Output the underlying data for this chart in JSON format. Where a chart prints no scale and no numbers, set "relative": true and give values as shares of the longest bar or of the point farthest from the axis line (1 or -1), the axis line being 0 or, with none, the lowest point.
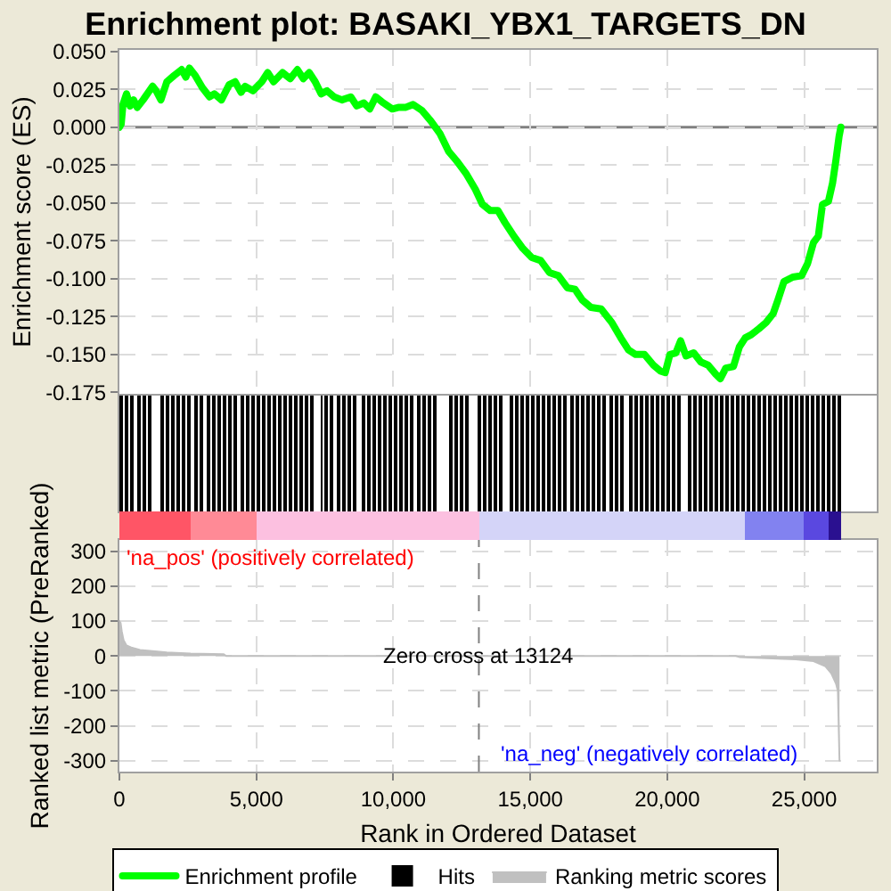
{
  "chart_data": [
    {
      "type": "line",
      "title": "Enrichment plot: BASAKI_YBX1_TARGETS_DN",
      "ylabel": "Enrichment score (ES)",
      "x": [
        0,
        65,
        130,
        260,
        390,
        520,
        650,
        866,
        1213,
        1343,
        1516,
        1733,
        1993,
        2274,
        2426,
        2556,
        2773,
        3032,
        3292,
        3466,
        3726,
        4007,
        4224,
        4440,
        4592,
        4873,
        5198,
        5415,
        5631,
        5956,
        6238,
        6498,
        6714,
        6931,
        7148,
        7364,
        7581,
        7841,
        8123,
        8448,
        8664,
        8924,
        9141,
        9358,
        9639,
        9964,
        10180,
        10440,
        10722,
        11047,
        11372,
        11696,
        12021,
        12346,
        12671,
        12996,
        13256,
        13537,
        13819,
        14079,
        14404,
        14729,
        15054,
        15379,
        15704,
        16028,
        16353,
        16635,
        16895,
        17220,
        17588,
        17978,
        18303,
        18584,
        18844,
        19169,
        19494,
        19754,
        19927,
        20100,
        20317,
        20490,
        20685,
        20967,
        21227,
        21487,
        21769,
        21942,
        22137,
        22418,
        22635,
        22851,
        23068,
        23350,
        23610,
        23870,
        24043,
        24260,
        24585,
        24910,
        25126,
        25343,
        25516,
        25668,
        25885,
        26036,
        26166,
        26275,
        26340
      ],
      "series": [
        {
          "name": "Enrichment profile",
          "color": "#00ff00",
          "values": [
            0,
            0.002,
            0.015,
            0.022,
            0.014,
            0.018,
            0.013,
            0.018,
            0.027,
            0.024,
            0.018,
            0.03,
            0.034,
            0.038,
            0.033,
            0.039,
            0.034,
            0.026,
            0.02,
            0.022,
            0.018,
            0.028,
            0.03,
            0.023,
            0.027,
            0.024,
            0.03,
            0.036,
            0.03,
            0.036,
            0.032,
            0.038,
            0.032,
            0.036,
            0.03,
            0.022,
            0.024,
            0.02,
            0.018,
            0.02,
            0.014,
            0.016,
            0.012,
            0.02,
            0.016,
            0.012,
            0.013,
            0.013,
            0.015,
            0.011,
            0.004,
            -0.004,
            -0.016,
            -0.023,
            -0.031,
            -0.041,
            -0.051,
            -0.055,
            -0.055,
            -0.063,
            -0.072,
            -0.08,
            -0.086,
            -0.088,
            -0.096,
            -0.098,
            -0.106,
            -0.107,
            -0.114,
            -0.119,
            -0.12,
            -0.129,
            -0.139,
            -0.147,
            -0.15,
            -0.15,
            -0.157,
            -0.161,
            -0.162,
            -0.15,
            -0.149,
            -0.141,
            -0.151,
            -0.149,
            -0.155,
            -0.157,
            -0.163,
            -0.166,
            -0.159,
            -0.158,
            -0.145,
            -0.139,
            -0.137,
            -0.133,
            -0.129,
            -0.123,
            -0.114,
            -0.102,
            -0.099,
            -0.098,
            -0.09,
            -0.076,
            -0.072,
            -0.051,
            -0.049,
            -0.037,
            -0.021,
            -0.006,
            0
          ]
        }
      ],
      "xlim": [
        0,
        27650
      ],
      "xticks": [
        0,
        5000,
        10000,
        15000,
        20000,
        25000
      ],
      "ylim": [
        -0.176,
        0.051
      ],
      "yticks": [
        {
          "value": 0.05,
          "label": "0.050"
        },
        {
          "value": 0.025,
          "label": "0.025"
        },
        {
          "value": 0,
          "label": "0.000"
        },
        {
          "value": -0.025,
          "label": "-0.025"
        },
        {
          "value": -0.05,
          "label": "-0.050"
        },
        {
          "value": -0.075,
          "label": "-0.075"
        },
        {
          "value": -0.1,
          "label": "-0.100"
        },
        {
          "value": -0.125,
          "label": "-0.125"
        },
        {
          "value": -0.15,
          "label": "-0.150"
        },
        {
          "value": -0.175,
          "label": "-0.175"
        }
      ],
      "grid": true,
      "ref_lines": [
        {
          "axis": "y",
          "value": 0,
          "color": "#808080"
        }
      ],
      "legend": "bottom",
      "tick_labels": "y"
    },
    {
      "type": "bar",
      "relative": true,
      "tick_labels": false,
      "legend": "bottom",
      "xlim": [
        0,
        27650
      ],
      "x": [
        40,
        234,
        429,
        689,
        884,
        1092,
        1560,
        1755,
        1950,
        2178,
        2373,
        2568,
        2769,
        2977,
        3230,
        3430,
        3627,
        3822,
        4017,
        4212,
        4459,
        4667,
        4862,
        5057,
        5252,
        5447,
        5642,
        5837,
        6032,
        6227,
        6422,
        6617,
        6812,
        7007,
        7384,
        7579,
        7774,
        8015,
        8210,
        8405,
        8600,
        8892,
        9087,
        9282,
        9477,
        9672,
        9867,
        10062,
        10257,
        10452,
        10660,
        10920,
        11135,
        11330,
        11525,
        12130,
        12325,
        12520,
        12715,
        13150,
        13345,
        13559,
        13754,
        13949,
        14300,
        14495,
        14690,
        14885,
        15080,
        15275,
        15470,
        15678,
        15880,
        16075,
        16270,
        16549,
        16744,
        16939,
        17134,
        17329,
        17524,
        17719,
        17940,
        18135,
        18330,
        18694,
        18889,
        19084,
        19279,
        19474,
        19669,
        19864,
        20059,
        20254,
        20449,
        20800,
        20995,
        21190,
        21385,
        21580,
        21775,
        21970,
        22165,
        22380,
        22575,
        22770,
        22965,
        23160,
        23355,
        23550,
        23745,
        23940,
        24135,
        24330,
        24525,
        24720,
        24915,
        25110,
        25305,
        25500,
        25695,
        25890,
        26085,
        26280
      ],
      "series": [
        {
          "name": "Hits",
          "color": "#000000",
          "values": [
            1,
            1,
            1,
            1,
            1,
            1,
            1,
            1,
            1,
            1,
            1,
            1,
            1,
            1,
            1,
            1,
            1,
            1,
            1,
            1,
            1,
            1,
            1,
            1,
            1,
            1,
            1,
            1,
            1,
            1,
            1,
            1,
            1,
            1,
            1,
            1,
            1,
            1,
            1,
            1,
            1,
            1,
            1,
            1,
            1,
            1,
            1,
            1,
            1,
            1,
            1,
            1,
            1,
            1,
            1,
            1,
            1,
            1,
            1,
            1,
            1,
            1,
            1,
            1,
            1,
            1,
            1,
            1,
            1,
            1,
            1,
            1,
            1,
            1,
            1,
            1,
            1,
            1,
            1,
            1,
            1,
            1,
            1,
            1,
            1,
            1,
            1,
            1,
            1,
            1,
            1,
            1,
            1,
            1,
            1,
            1,
            1,
            1,
            1,
            1,
            1,
            1,
            1,
            1,
            1,
            1,
            1,
            1,
            1,
            1,
            1,
            1,
            1,
            1,
            1,
            1,
            1,
            1,
            1,
            1,
            1,
            1,
            1,
            1
          ]
        }
      ]
    },
    {
      "type": "area",
      "xlabel": "Rank in Ordered Dataset",
      "ylabel": "Ranked list metric (PreRanked)",
      "x": [
        0,
        43,
        87,
        152,
        260,
        433,
        758,
        1300,
        1733,
        2600,
        3812,
        3900,
        22500,
        22635,
        23826,
        24692,
        25343,
        25776,
        25992,
        26166,
        26231,
        26290
      ],
      "series": [
        {
          "name": "Ranking metric scores",
          "color": "#c0c0c0",
          "values": [
            100,
            95,
            70,
            45,
            30,
            24,
            17,
            13,
            10,
            7,
            5,
            0,
            0,
            -3,
            -7,
            -10,
            -15,
            -30,
            -50,
            -80,
            -100,
            -300
          ]
        }
      ],
      "xlim": [
        0,
        27650
      ],
      "xticks": [
        0,
        {
          "value": 5000,
          "label": "5,000"
        },
        {
          "value": 10000,
          "label": "10,000"
        },
        {
          "value": 15000,
          "label": "15,000"
        },
        {
          "value": 20000,
          "label": "20,000"
        },
        {
          "value": 25000,
          "label": "25,000"
        }
      ],
      "ylim": [
        -331,
        332
      ],
      "yticks": [
        300,
        200,
        100,
        0,
        -100,
        -200,
        -300
      ],
      "grid": true,
      "ref_lines": [
        {
          "axis": "x",
          "value": 13124,
          "line_style": "dashed",
          "color": "#808080"
        }
      ],
      "annotations": [
        "'na_pos' (positively correlated)",
        {
          "text": "Zero cross at 13124",
          "x": 13124,
          "y": 0
        },
        "'na_neg' (negatively correlated)"
      ],
      "legend": "bottom"
    }
  ]
}
